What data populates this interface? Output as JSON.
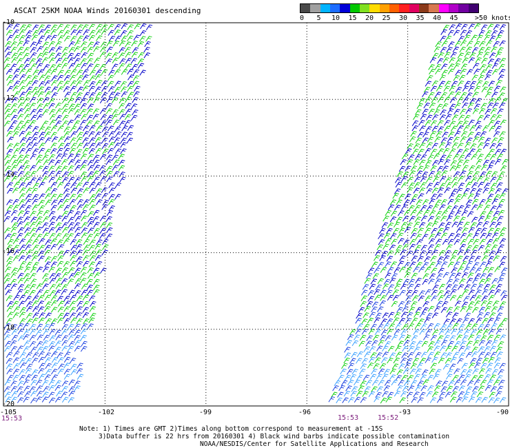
{
  "title": "ASCAT 25KM NOAA Winds 20160301 descending",
  "colorbar": {
    "colors": [
      "#4a4a4a",
      "#a0a0a0",
      "#00b4ff",
      "#1c6cff",
      "#0000d8",
      "#00c800",
      "#80e020",
      "#ffdc00",
      "#ffa000",
      "#ff6000",
      "#ff2020",
      "#e00060",
      "#8b3a1a",
      "#d87850",
      "#ff00ff",
      "#b000c8",
      "#7000a0",
      "#400070"
    ],
    "labels": [
      "0",
      "5",
      "10",
      "15",
      "20",
      "25",
      "30",
      "35",
      "40",
      "45",
      ">50 knots"
    ]
  },
  "lat_labels": [
    "-10",
    "-12",
    "-14",
    "-16",
    "-18",
    "-20"
  ],
  "lon_labels": [
    "-105",
    "-102",
    "-99",
    "-96",
    "-93",
    "-90"
  ],
  "pass_times": [
    "15:53",
    "15:53",
    "15:52"
  ],
  "notes": [
    "Note: 1) Times are GMT 2)Times along bottom correspond to measurement at -15S",
    "3)Data buffer is 22 hrs from 20160301 4) Black wind barbs indicate possible contamination",
    "NOAA/NESDIS/Center for Satellite Applications and Research"
  ],
  "map": {
    "lat_range": [
      -20,
      -10
    ],
    "lon_range": [
      -105,
      -90
    ],
    "barb_colors": {
      "light_blue": "#3aa0ff",
      "medium_blue": "#1a40e0",
      "dark_blue": "#0000c8",
      "green": "#10d010"
    },
    "swaths": [
      {
        "name": "western swath",
        "east_edge_lon_at_lat_-10": -100.5,
        "east_edge_lon_at_lat_-20": -102.9
      },
      {
        "name": "eastern swath",
        "west_edge_lon_at_lat_-10": -92.0,
        "west_edge_lon_at_lat_-20": -95.4
      }
    ]
  }
}
